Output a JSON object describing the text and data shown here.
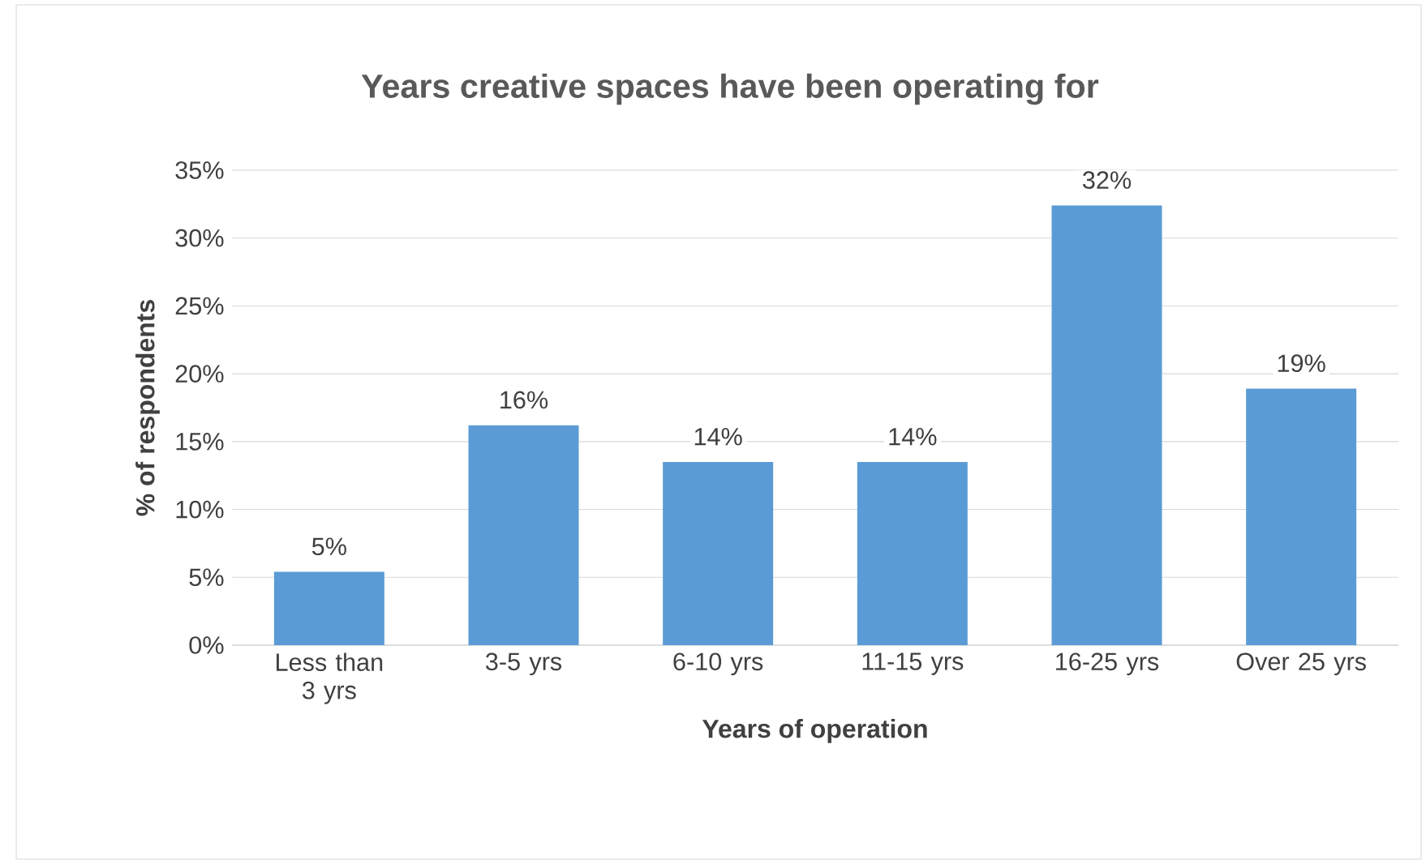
{
  "chart_data": {
    "type": "bar",
    "title": "Years creative spaces have been operating for",
    "xlabel": "Years of operation",
    "ylabel": "% of respondents",
    "categories": [
      "Less than 3 yrs",
      "3-5 yrs",
      "6-10 yrs",
      "11-15 yrs",
      "16-25 yrs",
      "Over 25 yrs"
    ],
    "values": [
      5.4,
      16.2,
      13.5,
      13.5,
      32.4,
      18.9
    ],
    "value_labels": [
      "5%",
      "16%",
      "14%",
      "14%",
      "32%",
      "19%"
    ],
    "color": "#5b9bd5",
    "ylim": [
      0,
      35
    ],
    "yticks": [
      {
        "value": 0,
        "label": "0%"
      },
      {
        "value": 5,
        "label": "5%"
      },
      {
        "value": 10,
        "label": "10%"
      },
      {
        "value": 15,
        "label": "15%"
      },
      {
        "value": 20,
        "label": "20%"
      },
      {
        "value": 25,
        "label": "25%"
      },
      {
        "value": 30,
        "label": "30%"
      },
      {
        "value": 35,
        "label": "35%"
      }
    ],
    "grid": true
  }
}
